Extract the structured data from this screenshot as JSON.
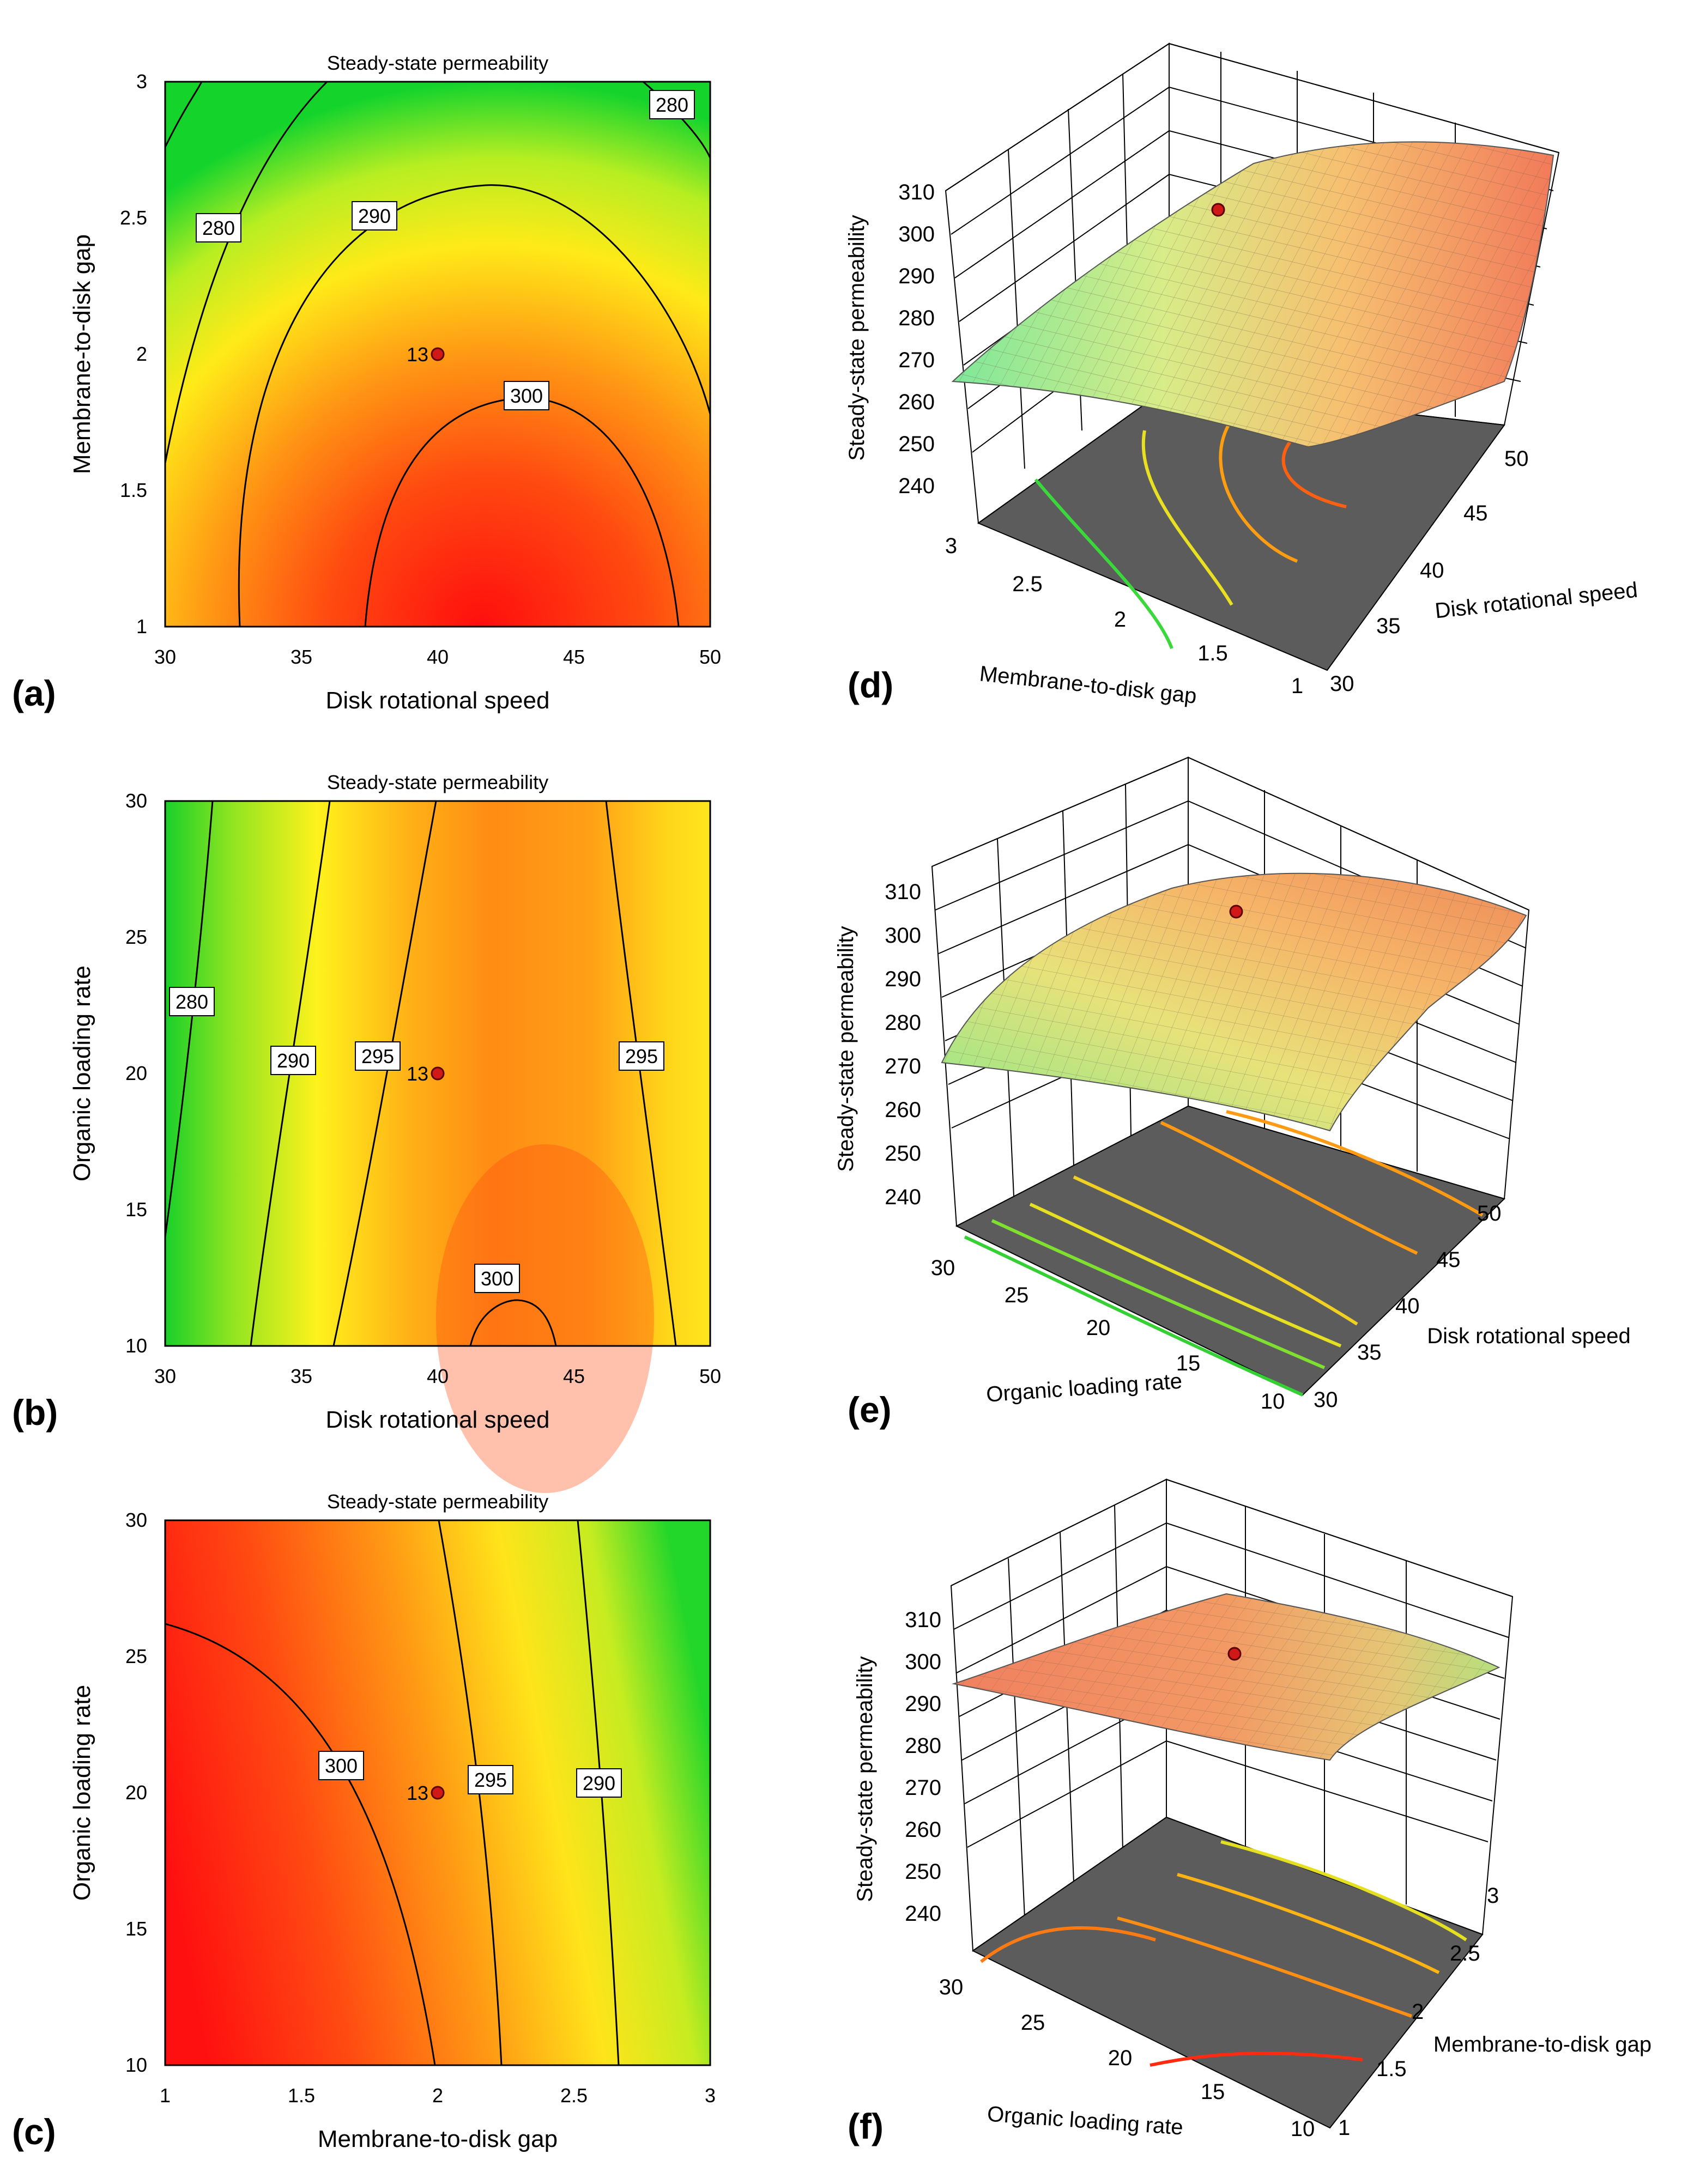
{
  "figure": {
    "panel_labels": [
      "(a)",
      "(b)",
      "(c)",
      "(d)",
      "(e)",
      "(f)"
    ],
    "colors": {
      "green": "#16d62a",
      "yellow": "#fff21c",
      "orange": "#ff9a14",
      "red": "#ff1010",
      "floor": "#5e5e5e",
      "line": "#000000",
      "point": "#d01818",
      "point_stroke": "#5a0000"
    }
  },
  "chart_data": [
    {
      "id": "a",
      "type": "contour",
      "title": "Steady-state permeability",
      "xlabel": "Disk rotational speed",
      "ylabel": "Membrane-to-disk gap",
      "xlim": [
        30,
        50
      ],
      "ylim": [
        1,
        3
      ],
      "xticks": [
        "30",
        "35",
        "40",
        "45",
        "50"
      ],
      "yticks": [
        "1",
        "1.5",
        "2",
        "2.5",
        "3"
      ],
      "contour_levels": [
        "280",
        "280",
        "290",
        "300"
      ],
      "point": {
        "label": "13",
        "x": 40,
        "y": 2
      },
      "gradient": "green-edges-red-bottom-center"
    },
    {
      "id": "b",
      "type": "contour",
      "title": "Steady-state permeability",
      "xlabel": "Disk rotational speed",
      "ylabel": "Organic loading rate",
      "xlim": [
        30,
        50
      ],
      "ylim": [
        10,
        30
      ],
      "xticks": [
        "30",
        "35",
        "40",
        "45",
        "50"
      ],
      "yticks": [
        "10",
        "15",
        "20",
        "25",
        "30"
      ],
      "contour_levels": [
        "280",
        "290",
        "295",
        "295",
        "300"
      ],
      "point": {
        "label": "13",
        "x": 40,
        "y": 20
      }
    },
    {
      "id": "c",
      "type": "contour",
      "title": "Steady-state permeability",
      "xlabel": "Membrane-to-disk gap",
      "ylabel": "Organic loading rate",
      "xlim": [
        1,
        3
      ],
      "ylim": [
        10,
        30
      ],
      "xticks": [
        "1",
        "1.5",
        "2",
        "2.5",
        "3"
      ],
      "yticks": [
        "10",
        "15",
        "20",
        "25",
        "30"
      ],
      "contour_levels": [
        "300",
        "295",
        "290"
      ],
      "point": {
        "label": "13",
        "x": 2,
        "y": 20
      }
    },
    {
      "id": "d",
      "type": "surface3d",
      "zlabel": "Steady-state permeability",
      "zticks": [
        "240",
        "250",
        "260",
        "270",
        "280",
        "290",
        "300",
        "310"
      ],
      "xlabel": "Membrane-to-disk gap",
      "xticks": [
        "3",
        "2.5",
        "2",
        "1.5",
        "1"
      ],
      "ylabel": "Disk rotational speed",
      "yticks": [
        "30",
        "35",
        "40",
        "45",
        "50"
      ]
    },
    {
      "id": "e",
      "type": "surface3d",
      "zlabel": "Steady-state permeability",
      "zticks": [
        "240",
        "250",
        "260",
        "270",
        "280",
        "290",
        "300",
        "310"
      ],
      "xlabel": "Organic loading rate",
      "xticks": [
        "30",
        "25",
        "20",
        "15",
        "10"
      ],
      "ylabel": "Disk rotational speed",
      "yticks": [
        "30",
        "35",
        "40",
        "45",
        "50"
      ]
    },
    {
      "id": "f",
      "type": "surface3d",
      "zlabel": "Steady-state permeability",
      "zticks": [
        "240",
        "250",
        "260",
        "270",
        "280",
        "290",
        "300",
        "310"
      ],
      "xlabel": "Organic loading rate",
      "xticks": [
        "30",
        "25",
        "20",
        "15",
        "10"
      ],
      "ylabel": "Membrane-to-disk gap",
      "yticks": [
        "1",
        "1.5",
        "2",
        "2.5",
        "3"
      ]
    }
  ]
}
